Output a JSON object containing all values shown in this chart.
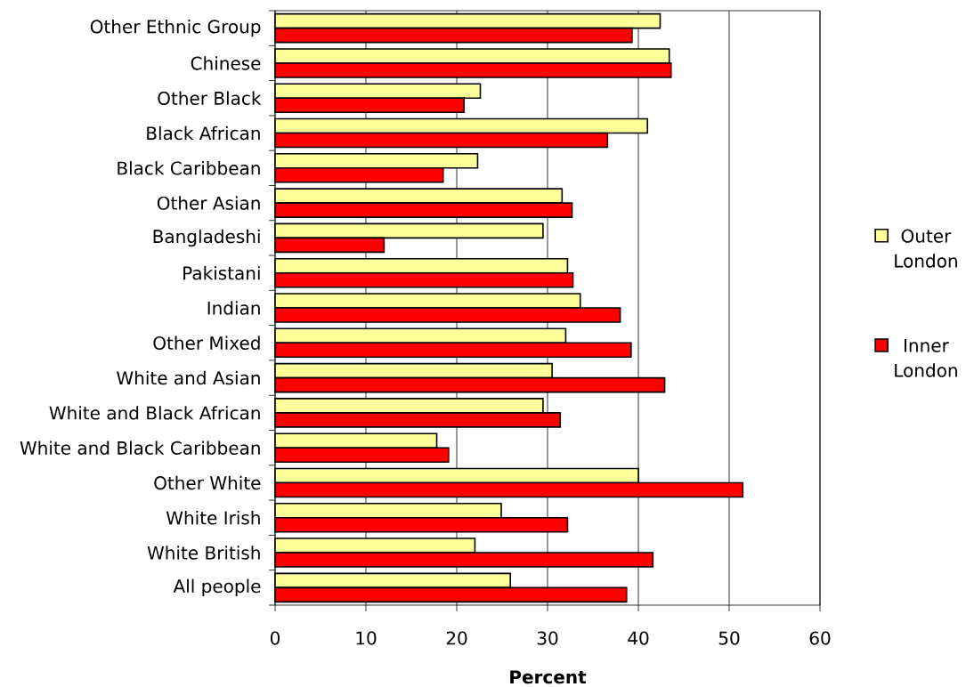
{
  "chart_data": {
    "type": "bar",
    "orientation": "horizontal",
    "xlabel": "Percent",
    "categories": [
      "Other Ethnic Group",
      "Chinese",
      "Other Black",
      "Black African",
      "Black Caribbean",
      "Other Asian",
      "Bangladeshi",
      "Pakistani",
      "Indian",
      "Other Mixed",
      "White and Asian",
      "White and Black African",
      "White and Black Caribbean",
      "Other White",
      "White Irish",
      "White British",
      "All people"
    ],
    "series": [
      {
        "name": "Outer London",
        "color": "#ffff99",
        "values": [
          42.4,
          43.4,
          22.6,
          41.0,
          22.3,
          31.6,
          29.5,
          32.2,
          33.6,
          32.0,
          30.5,
          29.5,
          17.8,
          40.0,
          24.9,
          22.0,
          25.9
        ]
      },
      {
        "name": "Inner London",
        "color": "#ff0000",
        "values": [
          39.3,
          43.6,
          20.8,
          36.6,
          18.5,
          32.7,
          12.0,
          32.8,
          38.0,
          39.2,
          42.9,
          31.4,
          19.1,
          51.5,
          32.2,
          41.6,
          38.7
        ]
      }
    ],
    "xlim": [
      0,
      60
    ],
    "xticks": [
      0,
      10,
      20,
      30,
      40,
      50,
      60
    ],
    "grid": "x",
    "legend": "right"
  }
}
